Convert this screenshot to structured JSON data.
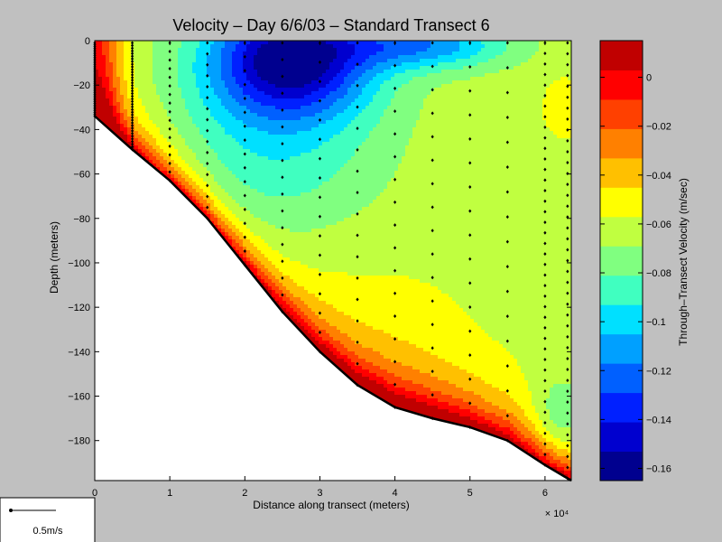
{
  "chart_data": {
    "type": "contour",
    "title": "Velocity – Day 6/6/03 – Standard Transect 6",
    "xlabel": "Distance along transect (meters)",
    "ylabel": "Depth (meters)",
    "x_exponent_label": "× 10⁴",
    "colorbar_label": "Through–Transect Velocity (m/sec)",
    "xlim": [
      0,
      6.35
    ],
    "ylim": [
      -198,
      0
    ],
    "x_ticks": [
      0,
      1,
      2,
      3,
      4,
      5,
      6
    ],
    "x_tick_labels": [
      "0",
      "1",
      "2",
      "3",
      "4",
      "5",
      "6"
    ],
    "y_ticks": [
      0,
      -20,
      -40,
      -60,
      -80,
      -100,
      -120,
      -140,
      -160,
      -180
    ],
    "y_tick_labels": [
      "0",
      "−20",
      "−40",
      "−60",
      "−80",
      "−100",
      "−120",
      "−140",
      "−160",
      "−180"
    ],
    "colorbar": {
      "range": [
        -0.165,
        0.015
      ],
      "ticks": [
        0,
        -0.02,
        -0.04,
        -0.06,
        -0.08,
        -0.1,
        -0.12,
        -0.14,
        -0.16
      ],
      "tick_labels": [
        "0",
        "−0.02",
        "−0.04",
        "−0.06",
        "−0.08",
        "−0.1",
        "−0.12",
        "−0.14",
        "−0.16"
      ],
      "colors": [
        "#00008f",
        "#0000cf",
        "#0020ff",
        "#0060ff",
        "#00a0ff",
        "#00e0ff",
        "#40ffc0",
        "#80ff80",
        "#c0ff40",
        "#ffff00",
        "#ffc000",
        "#ff8000",
        "#ff4000",
        "#ff0000",
        "#c00000"
      ]
    },
    "bathymetry": [
      [
        0,
        -34
      ],
      [
        0.5,
        -49
      ],
      [
        1,
        -63
      ],
      [
        1.5,
        -80
      ],
      [
        2,
        -101
      ],
      [
        2.5,
        -122
      ],
      [
        3,
        -140
      ],
      [
        3.5,
        -155
      ],
      [
        4,
        -165
      ],
      [
        4.5,
        -170
      ],
      [
        5,
        -174
      ],
      [
        5.5,
        -180
      ],
      [
        6,
        -191
      ],
      [
        6.35,
        -198
      ]
    ],
    "stations": [
      0,
      0.5,
      1,
      1.5,
      2,
      2.5,
      3,
      3.5,
      4,
      4.5,
      5,
      5.5,
      6,
      6.3
    ],
    "legend": {
      "scale_label": "0.5m/s"
    }
  }
}
